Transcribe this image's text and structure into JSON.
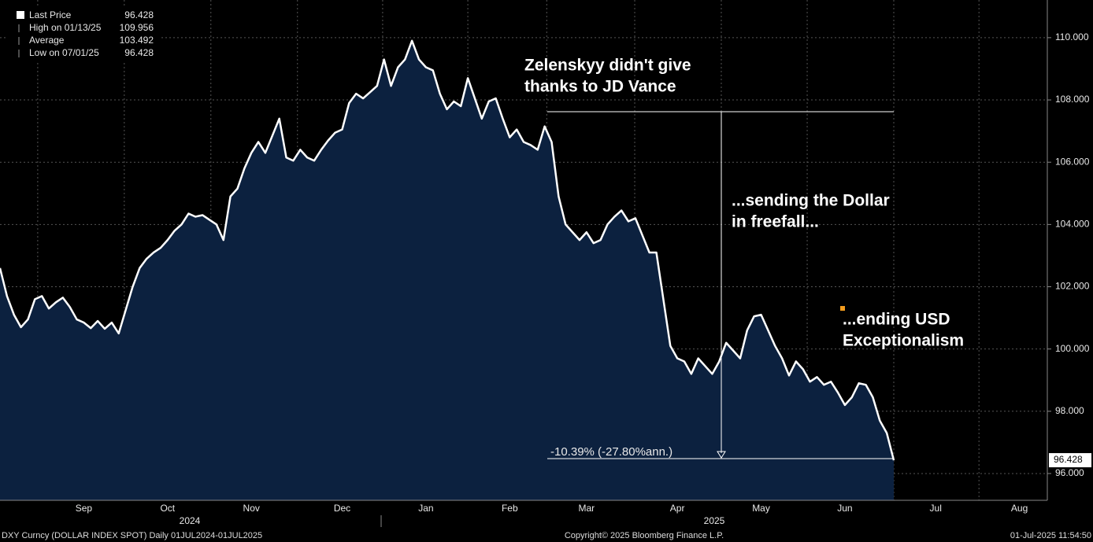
{
  "chart_data": {
    "type": "area",
    "categories": [
      null,
      null,
      null,
      null,
      null,
      null,
      null,
      null,
      null,
      null,
      null,
      null,
      "Sep",
      null,
      null,
      null,
      null,
      null,
      null,
      null,
      null,
      null,
      null,
      null,
      "Oct",
      null,
      null,
      null,
      null,
      null,
      null,
      null,
      null,
      null,
      null,
      null,
      "Nov",
      null,
      null,
      null,
      null,
      null,
      null,
      null,
      null,
      null,
      null,
      null,
      null,
      "Dec",
      null,
      null,
      null,
      null,
      null,
      null,
      null,
      null,
      null,
      null,
      null,
      "Jan",
      null,
      null,
      null,
      null,
      null,
      null,
      null,
      null,
      null,
      null,
      null,
      "Feb",
      null,
      null,
      null,
      null,
      null,
      null,
      null,
      null,
      null,
      null,
      "Mar",
      null,
      null,
      null,
      null,
      null,
      null,
      null,
      null,
      null,
      null,
      null,
      null,
      "Apr",
      null,
      null,
      null,
      null,
      null,
      null,
      null,
      null,
      null,
      null,
      null,
      "May",
      null,
      null,
      null,
      null,
      null,
      null,
      null,
      null,
      null,
      null,
      null,
      "Jun",
      null,
      null,
      null,
      null,
      null,
      null,
      null,
      null,
      null,
      null,
      null,
      null,
      "Jul",
      null,
      null,
      null,
      null,
      null,
      null,
      null,
      null,
      null,
      null,
      null,
      "Aug",
      null,
      null,
      null
    ],
    "x_groups": [
      "2024",
      "2025"
    ],
    "series": [
      {
        "name": "Last Price",
        "color": "#ffffff",
        "fill": "#0c213f",
        "values": [
          102.6,
          101.7,
          101.1,
          100.7,
          100.95,
          101.6,
          101.7,
          101.3,
          101.5,
          101.65,
          101.35,
          100.95,
          100.85,
          100.67,
          100.9,
          100.65,
          100.85,
          100.5,
          101.25,
          102.0,
          102.6,
          102.9,
          103.1,
          103.25,
          103.5,
          103.8,
          104.0,
          104.35,
          104.25,
          104.3,
          104.15,
          104.0,
          103.5,
          104.9,
          105.15,
          105.8,
          106.3,
          106.65,
          106.3,
          106.85,
          107.4,
          106.15,
          106.05,
          106.4,
          106.15,
          106.05,
          106.4,
          106.7,
          106.95,
          107.05,
          107.9,
          108.2,
          108.05,
          108.25,
          108.45,
          109.3,
          108.45,
          109.05,
          109.3,
          109.9,
          109.3,
          109.05,
          108.95,
          108.2,
          107.7,
          107.95,
          107.8,
          108.7,
          108.05,
          107.4,
          107.95,
          108.05,
          107.4,
          106.8,
          107.05,
          106.65,
          106.55,
          106.4,
          107.15,
          106.65,
          104.9,
          104.0,
          103.75,
          103.5,
          103.75,
          103.4,
          103.5,
          104.0,
          104.25,
          104.45,
          104.1,
          104.2,
          103.65,
          103.1,
          103.1,
          101.6,
          100.1,
          99.7,
          99.6,
          99.2,
          99.7,
          99.45,
          99.2,
          99.6,
          100.2,
          99.95,
          99.7,
          100.6,
          101.05,
          101.1,
          100.6,
          100.1,
          99.7,
          99.15,
          99.6,
          99.35,
          98.95,
          99.1,
          98.85,
          98.95,
          98.6,
          98.2,
          98.45,
          98.9,
          98.85,
          98.45,
          97.7,
          97.3,
          96.428,
          null,
          null,
          null,
          null,
          null,
          null,
          null,
          null,
          null,
          null,
          null,
          null,
          null,
          null,
          null,
          null,
          null,
          null,
          null,
          null,
          null
        ]
      }
    ],
    "ylim": [
      95.14,
      111.21
    ],
    "yticks": [
      {
        "value": 96,
        "label": "96.000"
      },
      {
        "value": 98,
        "label": "98.000"
      },
      {
        "value": 100,
        "label": "100.000"
      },
      {
        "value": 102,
        "label": "102.000"
      },
      {
        "value": 104,
        "label": "104.000"
      },
      {
        "value": 106,
        "label": "106.000"
      },
      {
        "value": 108,
        "label": "108.000"
      },
      {
        "value": 110,
        "label": "110.000"
      }
    ],
    "grid": true,
    "legend_stats": [
      {
        "label": "High on 01/13/25",
        "value": 109.956
      },
      {
        "label": "Average",
        "value": 103.492
      },
      {
        "label": "Low on 07/01/25",
        "value": 96.428
      }
    ],
    "annotations": [
      [
        "Zelenskyy didn't give",
        "thanks to JD Vance"
      ],
      [
        "...sending the Dollar",
        "in freefall..."
      ],
      [
        "...ending USD",
        "Exceptionalism"
      ]
    ],
    "change_label": "-10.39% (-27.80%ann.)",
    "footer": {
      "left": "DXY Curncy (DOLLAR INDEX SPOT)  Daily 01JUL2024-01JUL2025",
      "center": "Copyright© 2025 Bloomberg Finance L.P.",
      "right": "01-Jul-2025 11:54:50"
    }
  }
}
